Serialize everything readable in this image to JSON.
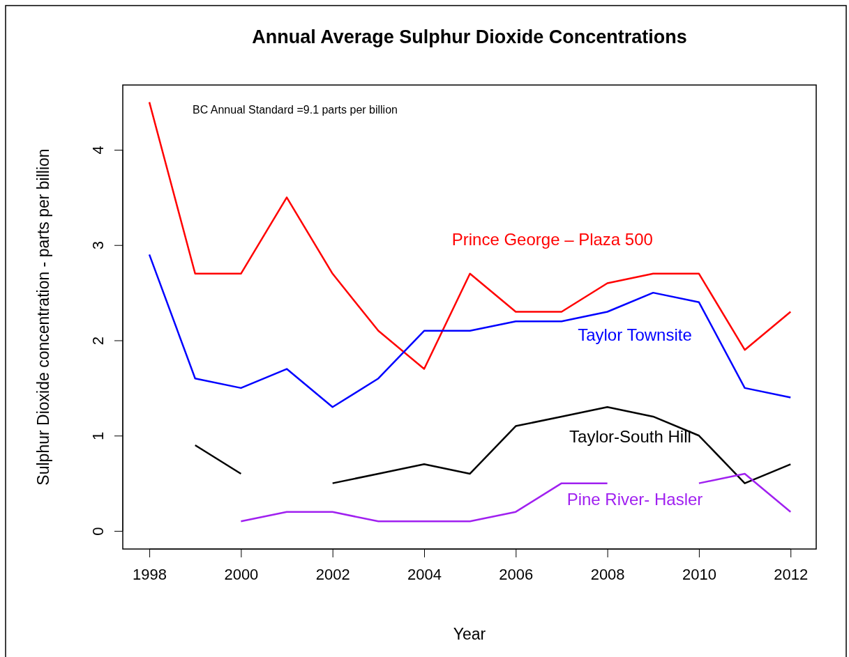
{
  "chart_data": {
    "type": "line",
    "title": "Annual Average Sulphur Dioxide Concentrations",
    "xlabel": "Year",
    "ylabel": "Sulphur Dioxide concentration - parts per billion",
    "annotations": [
      "BC Annual Standard =9.1 parts per billion"
    ],
    "x": [
      1998,
      1999,
      2000,
      2001,
      2002,
      2003,
      2004,
      2005,
      2006,
      2007,
      2008,
      2009,
      2010,
      2011,
      2012
    ],
    "xlim": [
      1997.42,
      2012.56
    ],
    "xticks": [
      1998,
      2000,
      2002,
      2004,
      2006,
      2008,
      2010,
      2012
    ],
    "ylim": [
      -0.19,
      4.68
    ],
    "yticks": [
      0,
      1,
      2,
      3,
      4
    ],
    "grid": false,
    "legend": false,
    "marker": "none",
    "line_style": "solid",
    "series": [
      {
        "name": "Prince George – Plaza 500",
        "color": "#ff0000",
        "values": [
          4.5,
          2.7,
          2.7,
          3.5,
          2.7,
          2.1,
          1.7,
          2.7,
          2.3,
          2.3,
          2.6,
          2.7,
          2.7,
          1.9,
          2.3
        ]
      },
      {
        "name": "Taylor Townsite",
        "color": "#0000ff",
        "values": [
          2.9,
          1.6,
          1.5,
          1.7,
          1.3,
          1.6,
          2.1,
          2.1,
          2.2,
          2.2,
          2.3,
          2.5,
          2.4,
          1.5,
          1.4
        ]
      },
      {
        "name": "Taylor-South Hill",
        "color": "#000000",
        "values": [
          null,
          0.9,
          0.6,
          null,
          0.5,
          0.6,
          0.7,
          0.6,
          1.1,
          1.2,
          1.3,
          1.2,
          1.0,
          0.5,
          0.7
        ]
      },
      {
        "name": "Pine River- Hasler",
        "color": "#a020f0",
        "values": [
          null,
          null,
          0.1,
          0.2,
          0.2,
          0.1,
          0.1,
          0.1,
          0.2,
          0.5,
          0.5,
          null,
          0.5,
          0.6,
          0.2
        ]
      }
    ]
  }
}
